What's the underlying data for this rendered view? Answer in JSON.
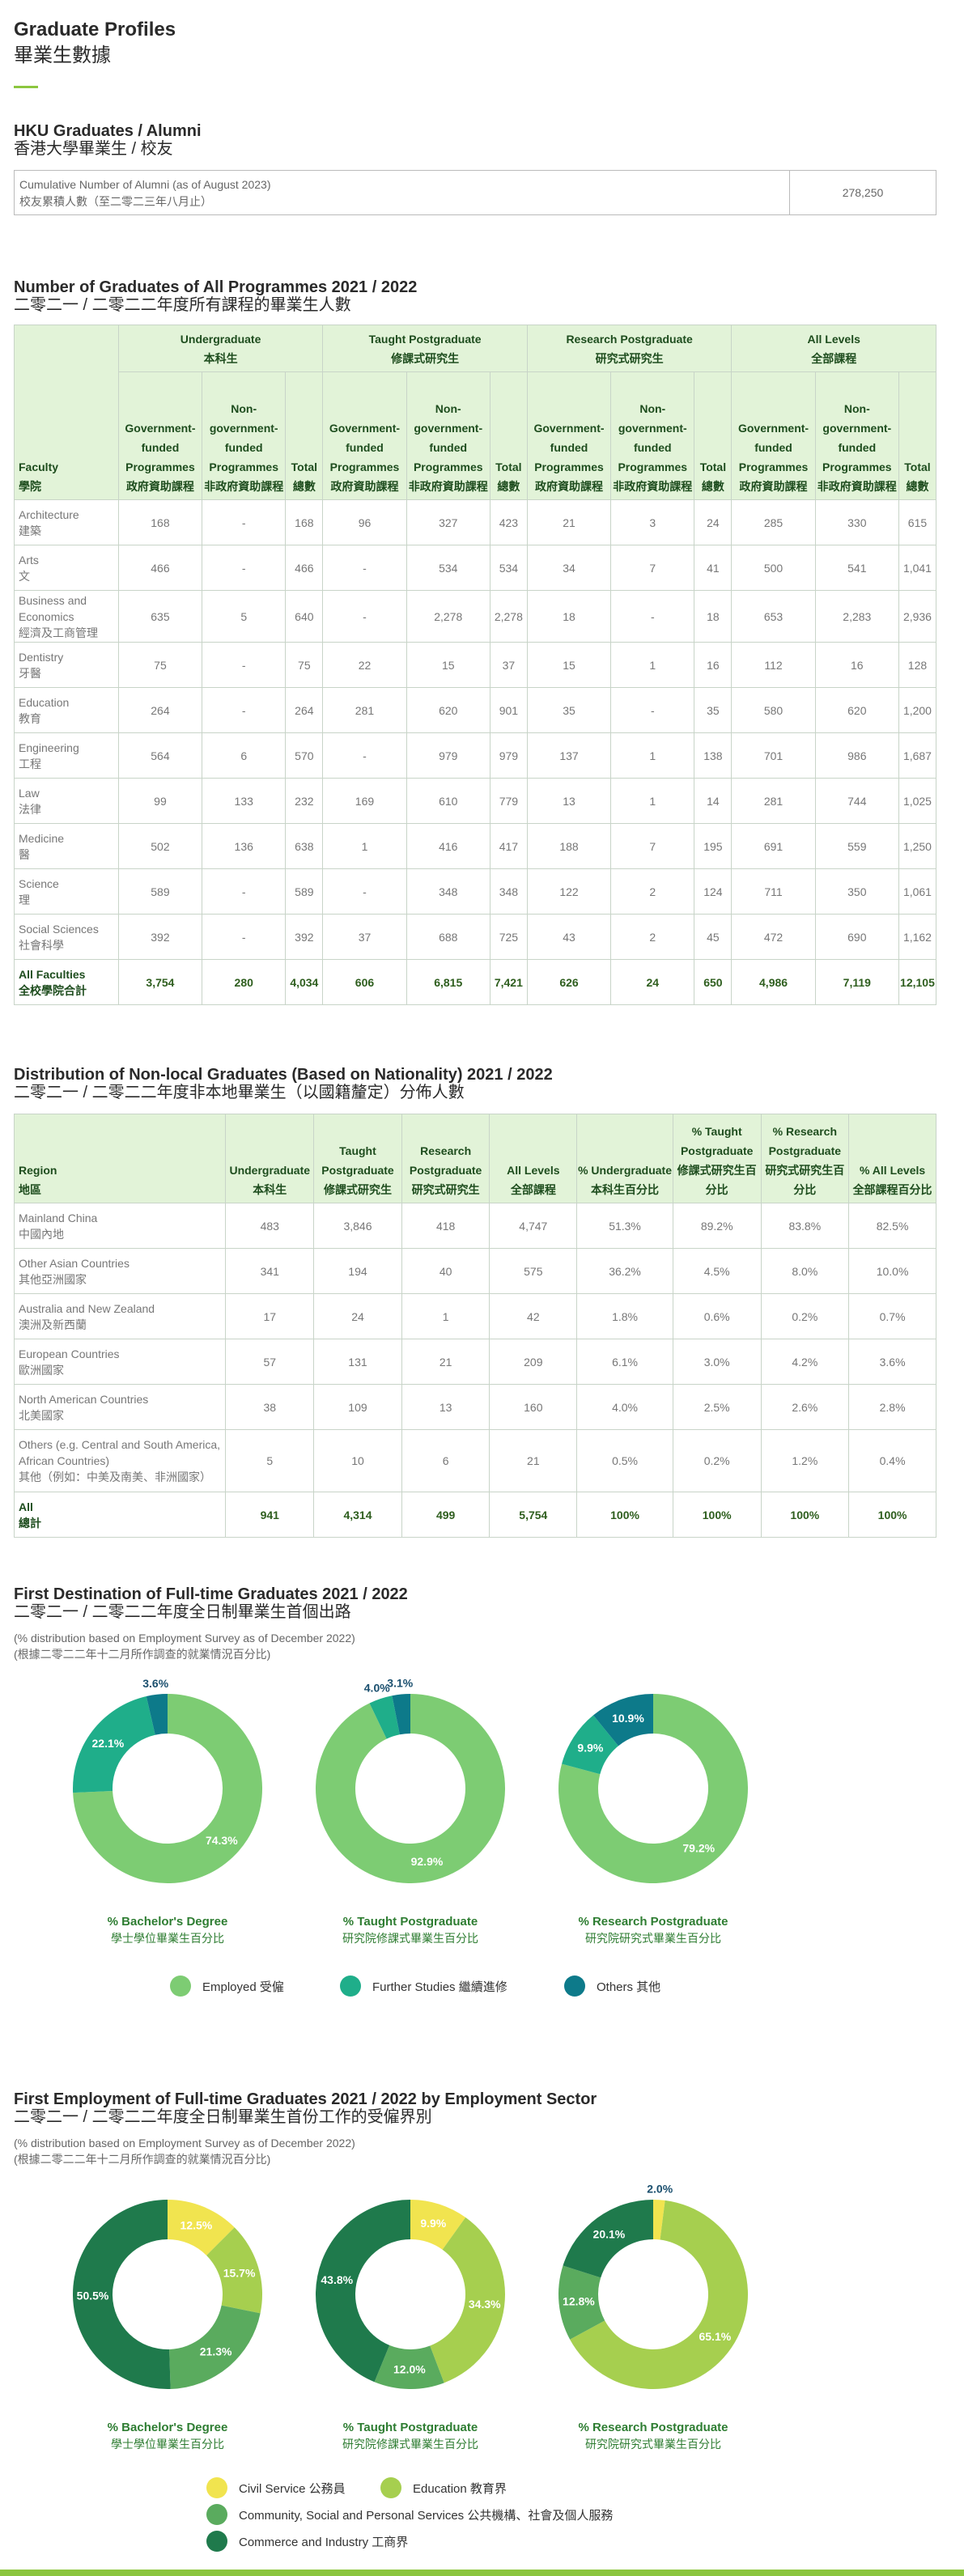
{
  "page": {
    "title": "Graduate Profiles",
    "title_zh": "畢業生數據"
  },
  "alumni": {
    "title": "HKU Graduates / Alumni",
    "title_zh": "香港大學畢業生 / 校友",
    "label": "Cumulative Number of Alumni (as of August 2023)",
    "label_zh": "校友累積人數（至二零二三年八月止）",
    "value": "278,250"
  },
  "graduates_table": {
    "title": "Number of Graduates of All Programmes 2021 / 2022",
    "title_zh": "二零二一 / 二零二二年度所有課程的畢業生人數",
    "faculty_header": "Faculty",
    "faculty_header_zh": "學院",
    "groups": [
      {
        "en": "Undergraduate",
        "zh": "本科生"
      },
      {
        "en": "Taught Postgraduate",
        "zh": "修課式研究生"
      },
      {
        "en": "Research Postgraduate",
        "zh": "研究式研究生"
      },
      {
        "en": "All Levels",
        "zh": "全部課程"
      }
    ],
    "subheaders": [
      {
        "en": "Government-funded Programmes",
        "zh": "政府資助課程"
      },
      {
        "en": "Non-government-funded Programmes",
        "zh": "非政府資助課程"
      },
      {
        "en": "Total",
        "zh": "總數"
      }
    ],
    "rows": [
      {
        "en": "Architecture",
        "zh": "建築",
        "values": [
          "168",
          "-",
          "168",
          "96",
          "327",
          "423",
          "21",
          "3",
          "24",
          "285",
          "330",
          "615"
        ]
      },
      {
        "en": "Arts",
        "zh": "文",
        "values": [
          "466",
          "-",
          "466",
          "-",
          "534",
          "534",
          "34",
          "7",
          "41",
          "500",
          "541",
          "1,041"
        ]
      },
      {
        "en": "Business and Economics",
        "zh": "經濟及工商管理",
        "values": [
          "635",
          "5",
          "640",
          "-",
          "2,278",
          "2,278",
          "18",
          "-",
          "18",
          "653",
          "2,283",
          "2,936"
        ]
      },
      {
        "en": "Dentistry",
        "zh": "牙醫",
        "values": [
          "75",
          "-",
          "75",
          "22",
          "15",
          "37",
          "15",
          "1",
          "16",
          "112",
          "16",
          "128"
        ]
      },
      {
        "en": "Education",
        "zh": "教育",
        "values": [
          "264",
          "-",
          "264",
          "281",
          "620",
          "901",
          "35",
          "-",
          "35",
          "580",
          "620",
          "1,200"
        ]
      },
      {
        "en": "Engineering",
        "zh": "工程",
        "values": [
          "564",
          "6",
          "570",
          "-",
          "979",
          "979",
          "137",
          "1",
          "138",
          "701",
          "986",
          "1,687"
        ]
      },
      {
        "en": "Law",
        "zh": "法律",
        "values": [
          "99",
          "133",
          "232",
          "169",
          "610",
          "779",
          "13",
          "1",
          "14",
          "281",
          "744",
          "1,025"
        ]
      },
      {
        "en": "Medicine",
        "zh": "醫",
        "values": [
          "502",
          "136",
          "638",
          "1",
          "416",
          "417",
          "188",
          "7",
          "195",
          "691",
          "559",
          "1,250"
        ]
      },
      {
        "en": "Science",
        "zh": "理",
        "values": [
          "589",
          "-",
          "589",
          "-",
          "348",
          "348",
          "122",
          "2",
          "124",
          "711",
          "350",
          "1,061"
        ]
      },
      {
        "en": "Social Sciences",
        "zh": "社會科學",
        "values": [
          "392",
          "-",
          "392",
          "37",
          "688",
          "725",
          "43",
          "2",
          "45",
          "472",
          "690",
          "1,162"
        ]
      }
    ],
    "total": {
      "en": "All Faculties",
      "zh": "全校學院合計",
      "values": [
        "3,754",
        "280",
        "4,034",
        "606",
        "6,815",
        "7,421",
        "626",
        "24",
        "650",
        "4,986",
        "7,119",
        "12,105"
      ]
    }
  },
  "nonlocal_table": {
    "title": "Distribution of Non-local Graduates (Based on Nationality) 2021 / 2022",
    "title_zh": "二零二一 / 二零二二年度非本地畢業生（以國籍釐定）分佈人數",
    "region_header": "Region",
    "region_header_zh": "地區",
    "headers": [
      {
        "en": "Undergraduate",
        "zh": "本科生"
      },
      {
        "en": "Taught Postgraduate",
        "zh": "修課式研究生"
      },
      {
        "en": "Research Postgraduate",
        "zh": "研究式研究生"
      },
      {
        "en": "All Levels",
        "zh": "全部課程"
      },
      {
        "en": "% Undergraduate",
        "zh": "本科生百分比"
      },
      {
        "en": "% Taught Postgraduate",
        "zh": "修課式研究生百分比"
      },
      {
        "en": "% Research Postgraduate",
        "zh": "研究式研究生百分比"
      },
      {
        "en": "% All Levels",
        "zh": "全部課程百分比"
      }
    ],
    "rows": [
      {
        "en": "Mainland China",
        "zh": "中國內地",
        "values": [
          "483",
          "3,846",
          "418",
          "4,747",
          "51.3%",
          "89.2%",
          "83.8%",
          "82.5%"
        ]
      },
      {
        "en": "Other Asian Countries",
        "zh": "其他亞洲國家",
        "values": [
          "341",
          "194",
          "40",
          "575",
          "36.2%",
          "4.5%",
          "8.0%",
          "10.0%"
        ]
      },
      {
        "en": "Australia and New Zealand",
        "zh": "澳洲及新西蘭",
        "values": [
          "17",
          "24",
          "1",
          "42",
          "1.8%",
          "0.6%",
          "0.2%",
          "0.7%"
        ]
      },
      {
        "en": "European Countries",
        "zh": "歐洲國家",
        "values": [
          "57",
          "131",
          "21",
          "209",
          "6.1%",
          "3.0%",
          "4.2%",
          "3.6%"
        ]
      },
      {
        "en": "North American Countries",
        "zh": "北美國家",
        "values": [
          "38",
          "109",
          "13",
          "160",
          "4.0%",
          "2.5%",
          "2.6%",
          "2.8%"
        ]
      },
      {
        "en": "Others (e.g. Central and South America, African Countries)",
        "zh": "其他（例如：中美及南美、非洲國家）",
        "values": [
          "5",
          "10",
          "6",
          "21",
          "0.5%",
          "0.2%",
          "1.2%",
          "0.4%"
        ]
      }
    ],
    "total": {
      "en": "All",
      "zh": "總計",
      "values": [
        "941",
        "4,314",
        "499",
        "5,754",
        "100%",
        "100%",
        "100%",
        "100%"
      ]
    }
  },
  "destination": {
    "title": "First Destination of Full-time Graduates 2021 / 2022",
    "title_zh": "二零二一 / 二零二二年度全日制畢業生首個出路",
    "note": "(% distribution based on Employment Survey as of December 2022)",
    "note_zh": "(根據二零二二年十二月所作調查的就業情況百分比)",
    "legend": [
      {
        "label": "Employed 受僱",
        "color": "#7dcc73"
      },
      {
        "label": "Further Studies 繼續進修",
        "color": "#1fae8a"
      },
      {
        "label": "Others 其他",
        "color": "#0d7a8a"
      }
    ]
  },
  "sector": {
    "title": "First Employment of Full-time Graduates 2021 / 2022 by Employment Sector",
    "title_zh": "二零二一 / 二零二二年度全日制畢業生首份工作的受僱界別",
    "note": "(% distribution based on Employment Survey as of December 2022)",
    "note_zh": "(根據二零二二年十二月所作調查的就業情況百分比)",
    "legend": [
      {
        "label": "Civil Service 公務員",
        "color": "#f1e44f"
      },
      {
        "label": "Education 教育界",
        "color": "#a6cf4f"
      },
      {
        "label": "Community, Social and Personal Services 公共機構、社會及個人服務",
        "color": "#5aab5e"
      },
      {
        "label": "Commerce and Industry 工商界",
        "color": "#1f7a4c"
      }
    ]
  },
  "chart_data": [
    {
      "type": "pie",
      "title": "% Bachelor's Degree",
      "subtitle": "學士學位畢業生百分比",
      "categories": [
        "Employed 受僱",
        "Further Studies 繼續進修",
        "Others 其他"
      ],
      "values": [
        74.3,
        22.1,
        3.6
      ],
      "labels": [
        "74.3%",
        "22.1%",
        "3.6%"
      ],
      "colors": [
        "#7dcc73",
        "#1fae8a",
        "#0d7a8a"
      ]
    },
    {
      "type": "pie",
      "title": "% Taught Postgraduate",
      "subtitle": "研究院修課式畢業生百分比",
      "categories": [
        "Employed 受僱",
        "Further Studies 繼續進修",
        "Others 其他"
      ],
      "values": [
        92.9,
        4.0,
        3.1
      ],
      "labels": [
        "92.9%",
        "4.0%",
        "3.1%"
      ],
      "colors": [
        "#7dcc73",
        "#1fae8a",
        "#0d7a8a"
      ]
    },
    {
      "type": "pie",
      "title": "% Research Postgraduate",
      "subtitle": "研究院研究式畢業生百分比",
      "categories": [
        "Employed 受僱",
        "Further Studies 繼續進修",
        "Others 其他"
      ],
      "values": [
        79.2,
        9.9,
        10.9
      ],
      "labels": [
        "79.2%",
        "9.9%",
        "10.9%"
      ],
      "colors": [
        "#7dcc73",
        "#1fae8a",
        "#0d7a8a"
      ]
    },
    {
      "type": "pie",
      "title": "% Bachelor's Degree",
      "subtitle": "學士學位畢業生百分比",
      "categories": [
        "Civil Service 公務員",
        "Education 教育界",
        "Community, Social and Personal Services 公共機構、社會及個人服務",
        "Commerce and Industry 工商界"
      ],
      "values": [
        12.5,
        15.7,
        21.3,
        50.5
      ],
      "labels": [
        "12.5%",
        "15.7%",
        "21.3%",
        "50.5%"
      ],
      "colors": [
        "#f1e44f",
        "#a6cf4f",
        "#5aab5e",
        "#1f7a4c"
      ]
    },
    {
      "type": "pie",
      "title": "% Taught Postgraduate",
      "subtitle": "研究院修課式畢業生百分比",
      "categories": [
        "Civil Service 公務員",
        "Education 教育界",
        "Community, Social and Personal Services 公共機構、社會及個人服務",
        "Commerce and Industry 工商界"
      ],
      "values": [
        9.9,
        34.3,
        12.0,
        43.8
      ],
      "labels": [
        "9.9%",
        "34.3%",
        "12.0%",
        "43.8%"
      ],
      "colors": [
        "#f1e44f",
        "#a6cf4f",
        "#5aab5e",
        "#1f7a4c"
      ]
    },
    {
      "type": "pie",
      "title": "% Research Postgraduate",
      "subtitle": "研究院研究式畢業生百分比",
      "categories": [
        "Civil Service 公務員",
        "Education 教育界",
        "Community, Social and Personal Services 公共機構、社會及個人服務",
        "Commerce and Industry 工商界"
      ],
      "values": [
        2.0,
        65.1,
        12.8,
        20.1
      ],
      "labels": [
        "2.0%",
        "65.1%",
        "12.8%",
        "20.1%"
      ],
      "colors": [
        "#f1e44f",
        "#a6cf4f",
        "#5aab5e",
        "#1f7a4c"
      ]
    }
  ]
}
